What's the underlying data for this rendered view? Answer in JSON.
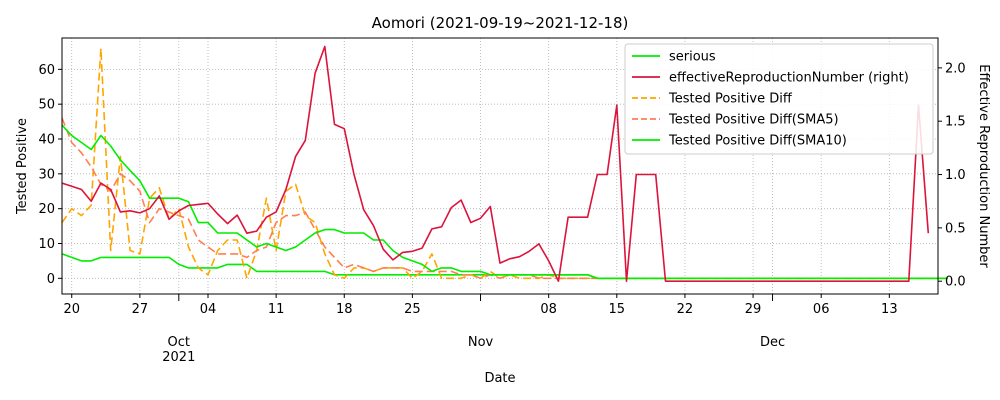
{
  "chart_data": {
    "type": "line",
    "title": "Aomori (2021-09-19~2021-12-18)",
    "xlabel": "Date",
    "ylabel_left": "Tested Positive",
    "ylabel_right": "Effective Reproduction Number",
    "x_start": "2021-09-19",
    "x_end": "2021-12-18",
    "ylim_left": [
      -4.5,
      69
    ],
    "ylim_right": [
      -0.12,
      2.28
    ],
    "yticks_left": [
      0,
      10,
      20,
      30,
      40,
      50,
      60
    ],
    "yticks_right": [
      0.0,
      0.5,
      1.0,
      1.5,
      2.0
    ],
    "yticks_right_labels": [
      "0.0",
      "0.5",
      "1.0",
      "1.5",
      "2.0"
    ],
    "xticks": [
      {
        "date": "2021-09-20",
        "label": "20"
      },
      {
        "date": "2021-09-27",
        "label": "27"
      },
      {
        "date": "2021-10-01",
        "label": "Oct",
        "label2": "2021"
      },
      {
        "date": "2021-10-04",
        "label": "04"
      },
      {
        "date": "2021-10-11",
        "label": "11"
      },
      {
        "date": "2021-10-18",
        "label": "18"
      },
      {
        "date": "2021-10-25",
        "label": "25"
      },
      {
        "date": "2021-11-01",
        "label": "Nov"
      },
      {
        "date": "2021-11-08",
        "label": "08"
      },
      {
        "date": "2021-11-15",
        "label": "15"
      },
      {
        "date": "2021-11-22",
        "label": "22"
      },
      {
        "date": "2021-11-29",
        "label": "29"
      },
      {
        "date": "2021-12-01",
        "label": "Dec"
      },
      {
        "date": "2021-12-06",
        "label": "06"
      },
      {
        "date": "2021-12-13",
        "label": "13"
      }
    ],
    "grid": true,
    "legend_position": "top-right",
    "series": [
      {
        "name": "serious",
        "axis": "left",
        "color": "#00ee00",
        "dash": "solid",
        "values": [
          7,
          6,
          5,
          5,
          6,
          6,
          6,
          6,
          6,
          6,
          6,
          6,
          4,
          3,
          3,
          3,
          3,
          4,
          4,
          4,
          2,
          2,
          2,
          2,
          2,
          2,
          2,
          2,
          1,
          1,
          1,
          1,
          1,
          1,
          1,
          1,
          1,
          1,
          1,
          1,
          1,
          1,
          1,
          1,
          1,
          1,
          1,
          1,
          1,
          1,
          1,
          1,
          1,
          1,
          1,
          0,
          0,
          0,
          0,
          0,
          0,
          0,
          0,
          0,
          0,
          0,
          0,
          0,
          0,
          0,
          0,
          0,
          0,
          0,
          0,
          0,
          0,
          0,
          0,
          0,
          0,
          0,
          0,
          0,
          0,
          0,
          0,
          0,
          0,
          0,
          0
        ]
      },
      {
        "name": "effectiveReproductionNumber (right)",
        "axis": "right",
        "color": "#dc143c",
        "dash": "solid",
        "values": [
          0.92,
          0.89,
          0.86,
          0.75,
          0.92,
          0.86,
          0.65,
          0.66,
          0.64,
          0.68,
          0.8,
          0.58,
          0.66,
          0.71,
          0.72,
          0.73,
          0.63,
          0.54,
          0.62,
          0.45,
          0.47,
          0.6,
          0.65,
          0.86,
          1.17,
          1.32,
          1.95,
          2.2,
          1.47,
          1.43,
          1.0,
          0.67,
          0.52,
          0.3,
          0.2,
          0.27,
          0.28,
          0.31,
          0.49,
          0.51,
          0.69,
          0.76,
          0.55,
          0.59,
          0.7,
          0.17,
          0.21,
          0.23,
          0.28,
          0.35,
          0.19,
          0.0,
          0.6,
          0.6,
          0.6,
          1.0,
          1.0,
          1.65,
          0.0,
          1.0,
          1.0,
          1.0,
          0.0,
          0.0,
          0.0,
          0.0,
          0.0,
          0.0,
          0.0,
          0.0,
          0.0,
          0.0,
          0.0,
          0.0,
          0.0,
          0.0,
          0.0,
          0.0,
          0.0,
          0.0,
          0.0,
          0.0,
          0.0,
          0.0,
          0.0,
          0.0,
          0.0,
          0.0,
          1.65,
          0.45
        ]
      },
      {
        "name": "Tested Positive Diff",
        "axis": "left",
        "color": "#ffa500",
        "dash": "8,4",
        "values": [
          16,
          20,
          18,
          21,
          66,
          8,
          35,
          8,
          7,
          23,
          26,
          17,
          20,
          9,
          3,
          1,
          8,
          11,
          11,
          0,
          8,
          23,
          8,
          25,
          27,
          18,
          16,
          7,
          1,
          0,
          3,
          3,
          2,
          3,
          3,
          3,
          0,
          2,
          7,
          0,
          0,
          0,
          1,
          0,
          2,
          0,
          1,
          0,
          0,
          0,
          1,
          0,
          0,
          0,
          0,
          0,
          0,
          0,
          0,
          0,
          0,
          0,
          0,
          0,
          0,
          0,
          0,
          0,
          0,
          0,
          0,
          0,
          0,
          0,
          0,
          0,
          0,
          0,
          0,
          0,
          0,
          0,
          0,
          0,
          0,
          0,
          0,
          0,
          0,
          0,
          0,
          0
        ]
      },
      {
        "name": "Tested Positive Diff(SMA5)",
        "axis": "left",
        "color": "#ff7f50",
        "dash": "8,4",
        "values": [
          46,
          39,
          36,
          32,
          27,
          25,
          30,
          28,
          25,
          16,
          20,
          19,
          18,
          17,
          11,
          9,
          7,
          7,
          7,
          6,
          8,
          9,
          16,
          18,
          18,
          19,
          14,
          9,
          6,
          3,
          4,
          3,
          2,
          3,
          3,
          3,
          2,
          2,
          2,
          2,
          2,
          1,
          1,
          0,
          1,
          0,
          1,
          1,
          1,
          0,
          0,
          0,
          0,
          0,
          0,
          0,
          0,
          0,
          0,
          0,
          0,
          0,
          0,
          0,
          0,
          0,
          0,
          0,
          0,
          0,
          0,
          0,
          0,
          0,
          0,
          0,
          0,
          0,
          0,
          0,
          0,
          0,
          0,
          0,
          0,
          0,
          0,
          0,
          0,
          0,
          0,
          0
        ]
      },
      {
        "name": "Tested Positive Diff(SMA10)",
        "axis": "left",
        "color": "#00ee00",
        "dash": "solid",
        "values": [
          44,
          41,
          39,
          37,
          41,
          38,
          34,
          31,
          28,
          23,
          23,
          23,
          23,
          22,
          16,
          16,
          13,
          13,
          13,
          11,
          9,
          10,
          9,
          8,
          9,
          11,
          13,
          14,
          14,
          13,
          13,
          13,
          11,
          11,
          8,
          6,
          5,
          4,
          2,
          3,
          3,
          2,
          2,
          2,
          1,
          1,
          1,
          1,
          1,
          1,
          1,
          1,
          1,
          1,
          1,
          0,
          0,
          0,
          0,
          0,
          0,
          0,
          0,
          0,
          0,
          0,
          0,
          0,
          0,
          0,
          0,
          0,
          0,
          0,
          0,
          0,
          0,
          0,
          0,
          0,
          0,
          0,
          0,
          0,
          0,
          0,
          0,
          0,
          0,
          0,
          0,
          0
        ]
      }
    ]
  }
}
